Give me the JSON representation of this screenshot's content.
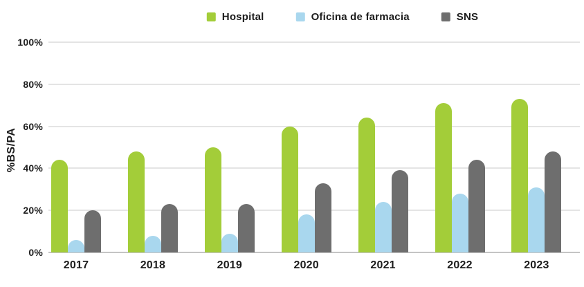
{
  "chart_data": {
    "type": "bar",
    "title": "",
    "categories": [
      "2017",
      "2018",
      "2019",
      "2020",
      "2021",
      "2022",
      "2023"
    ],
    "series": [
      {
        "name": "Hospital",
        "color": "#a3cd39",
        "values": [
          44,
          48,
          50,
          60,
          64,
          71,
          73
        ]
      },
      {
        "name": "Oficina de farmacia",
        "color": "#a9d7ee",
        "values": [
          6,
          8,
          9,
          18,
          24,
          28,
          31
        ]
      },
      {
        "name": "SNS",
        "color": "#6e6e6e",
        "values": [
          20,
          23,
          23,
          33,
          39,
          44,
          48
        ]
      }
    ],
    "xlabel": "",
    "ylabel": "%BS/PA",
    "ylim": [
      0,
      100
    ],
    "yticks": [
      0,
      20,
      40,
      60,
      80,
      100
    ],
    "ytick_suffix": "%",
    "grid": true,
    "legend_position": "top-center"
  },
  "colors": {
    "text": "#1c1c1c",
    "gridline": "#e4e4e4",
    "baseline": "#c4c4c4",
    "background": "#ffffff"
  }
}
